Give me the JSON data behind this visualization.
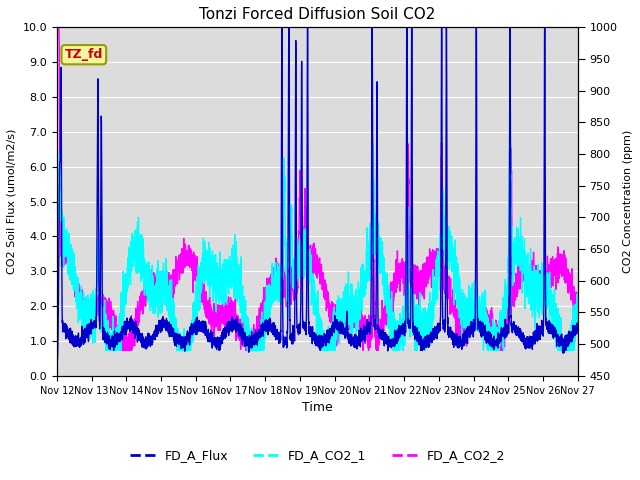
{
  "title": "Tonzi Forced Diffusion Soil CO2",
  "xlabel": "Time",
  "ylabel_left": "CO2 Soil Flux (umol/m2/s)",
  "ylabel_right": "CO2 Concentration (ppm)",
  "ylim_left": [
    0.0,
    10.0
  ],
  "ylim_right": [
    450,
    1000
  ],
  "yticks_left": [
    0.0,
    1.0,
    2.0,
    3.0,
    4.0,
    5.0,
    6.0,
    7.0,
    8.0,
    9.0,
    10.0
  ],
  "yticks_right": [
    450,
    500,
    550,
    600,
    650,
    700,
    750,
    800,
    850,
    900,
    950,
    1000
  ],
  "xtick_labels": [
    "Nov 12",
    "Nov 13",
    "Nov 14",
    "Nov 15",
    "Nov 16",
    "Nov 17",
    "Nov 18",
    "Nov 19",
    "Nov 20",
    "Nov 21",
    "Nov 22",
    "Nov 23",
    "Nov 24",
    "Nov 25",
    "Nov 26",
    "Nov 27"
  ],
  "color_flux": "#0000CD",
  "color_co2_1": "#00FFFF",
  "color_co2_2": "#FF00FF",
  "legend_entries": [
    "FD_A_Flux",
    "FD_A_CO2_1",
    "FD_A_CO2_2"
  ],
  "label_text": "TZ_fd",
  "label_bg": "#F5F5A0",
  "label_fg": "#CC0000",
  "bg_color": "#DCDCDC",
  "linewidth_flux": 1.0,
  "linewidth_co2": 1.0,
  "n_points": 4320,
  "xlim_days": [
    0,
    15
  ],
  "figsize": [
    6.4,
    4.8
  ],
  "dpi": 100
}
